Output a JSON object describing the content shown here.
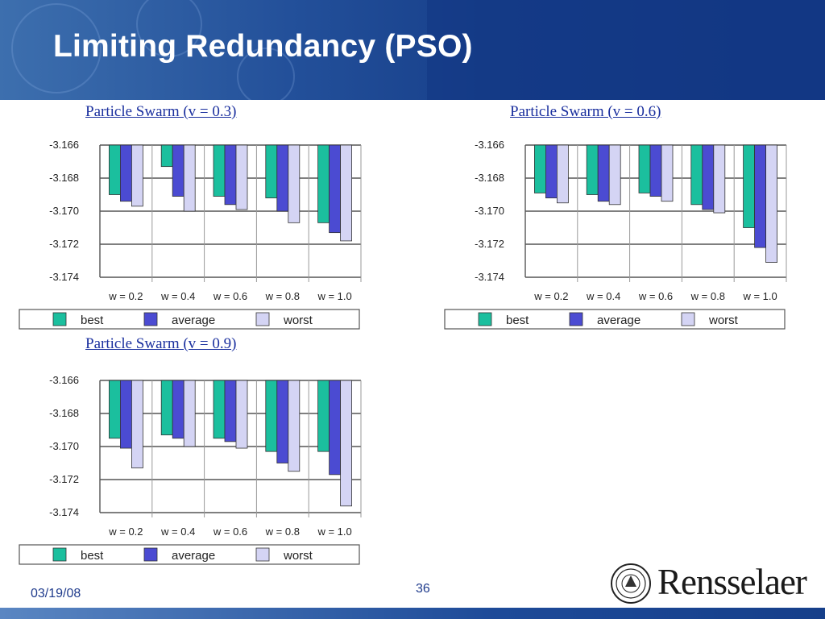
{
  "slide": {
    "title": "Limiting Redundancy (PSO)",
    "date": "03/19/08",
    "page_number": "36",
    "logo_text": "Rensselaer"
  },
  "colors": {
    "best": "#1bbf9e",
    "average": "#4b4bd2",
    "worst": "#d4d4f4",
    "title_link": "#1a2f9e",
    "header_blue": "#173f8a"
  },
  "chart_data": [
    {
      "type": "bar",
      "title": "Particle Swarm (v = 0.3)",
      "categories": [
        "w = 0.2",
        "w = 0.4",
        "w = 0.6",
        "w = 0.8",
        "w = 1.0"
      ],
      "ylim": [
        -3.174,
        -3.166
      ],
      "baseline": -3.166,
      "yticks": [
        "-3.166",
        "-3.168",
        "-3.170",
        "-3.172",
        "-3.174"
      ],
      "grid": true,
      "legend_position": "bottom",
      "series": [
        {
          "name": "best",
          "values": [
            -3.169,
            -3.1673,
            -3.1691,
            -3.1692,
            -3.1707
          ]
        },
        {
          "name": "average",
          "values": [
            -3.1694,
            -3.1691,
            -3.1696,
            -3.17,
            -3.1713
          ]
        },
        {
          "name": "worst",
          "values": [
            -3.1697,
            -3.17,
            -3.1699,
            -3.1707,
            -3.1718
          ]
        }
      ]
    },
    {
      "type": "bar",
      "title": "Particle Swarm (v = 0.6)",
      "categories": [
        "w = 0.2",
        "w = 0.4",
        "w = 0.6",
        "w = 0.8",
        "w = 1.0"
      ],
      "ylim": [
        -3.174,
        -3.166
      ],
      "baseline": -3.166,
      "yticks": [
        "-3.166",
        "-3.168",
        "-3.170",
        "-3.172",
        "-3.174"
      ],
      "grid": true,
      "legend_position": "bottom",
      "series": [
        {
          "name": "best",
          "values": [
            -3.1689,
            -3.169,
            -3.1689,
            -3.1696,
            -3.171
          ]
        },
        {
          "name": "average",
          "values": [
            -3.1692,
            -3.1694,
            -3.1691,
            -3.1699,
            -3.1722
          ]
        },
        {
          "name": "worst",
          "values": [
            -3.1695,
            -3.1696,
            -3.1694,
            -3.1701,
            -3.1731
          ]
        }
      ]
    },
    {
      "type": "bar",
      "title": "Particle Swarm (v = 0.9)",
      "categories": [
        "w = 0.2",
        "w = 0.4",
        "w = 0.6",
        "w = 0.8",
        "w = 1.0"
      ],
      "ylim": [
        -3.174,
        -3.166
      ],
      "baseline": -3.166,
      "yticks": [
        "-3.166",
        "-3.168",
        "-3.170",
        "-3.172",
        "-3.174"
      ],
      "grid": true,
      "legend_position": "bottom",
      "series": [
        {
          "name": "best",
          "values": [
            -3.1695,
            -3.1693,
            -3.1695,
            -3.1703,
            -3.1703
          ]
        },
        {
          "name": "average",
          "values": [
            -3.1701,
            -3.1695,
            -3.1697,
            -3.171,
            -3.1717
          ]
        },
        {
          "name": "worst",
          "values": [
            -3.1713,
            -3.17,
            -3.1701,
            -3.1715,
            -3.1736
          ]
        }
      ]
    }
  ]
}
